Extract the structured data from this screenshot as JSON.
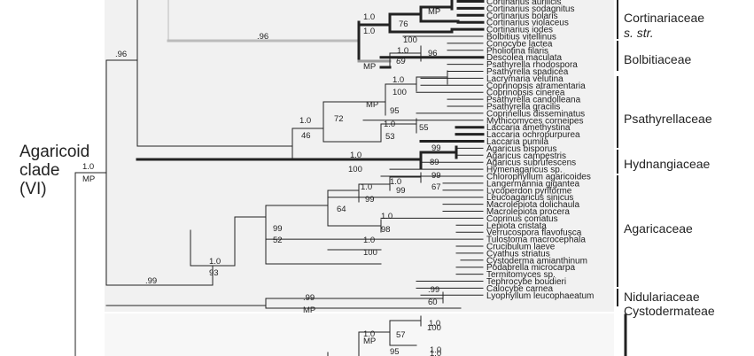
{
  "clade": {
    "line1": "Agaricoid",
    "line2": "clade",
    "line3": "(VI)",
    "support_top": "1.0",
    "support_bottom": "MP"
  },
  "taxa": [
    "Cortinarius aurilicis",
    "Cortinarius sodagnitus",
    "Cortinarius bolaris",
    "Cortinarius violaceus",
    "Cortinarius iodes",
    "Bolbitius vitellinus",
    "Conocybe lactea",
    "Pholiotina filaris",
    "Descolea maculata",
    "Psathyrella rhodospora",
    "Psathyrella spadicea",
    "Lacrymaria velutina",
    "Coprinopsis atramentaria",
    "Coprinopsis cinerea",
    "Psathyrella candolleana",
    "Psathyrella gracilis",
    "Coprinellus disseminatus",
    "Mythicomyces corneipes",
    "Laccaria amethystina",
    "Laccaria ochropurpurea",
    "Laccaria pumila",
    "Agaricus bisporus",
    "Agaricus campestris",
    "Agaricus subrufescens",
    "Hymenagaricus sp.",
    "Chlorophyllum agaricoides",
    "Langermannia gigantea",
    "Lycoperdon pyriforme",
    "Leucoagaricus sinicus",
    "Macrolepiota dolichaula",
    "Macrolepiota procera",
    "Coprinus comatus",
    "Lepiota cristata",
    "Verrucospora flavofusca",
    "Tulostoma macrocephala",
    "Crucibulum laeve",
    "Cyathus striatus",
    "Cystoderma amianthinum",
    "Podabrella microcarpa",
    "Termitomyces sp.",
    "Tephrocybe boudieri",
    "Calocybe carnea",
    "Lyophyllum leucophaeatum"
  ],
  "families": {
    "cortinariaceae": "Cortinariaceae",
    "s_str": "s. str.",
    "bolbitiaceae": "Bolbitiaceae",
    "psathyrellaceae": "Psathyrellaceae",
    "hydnangiaceae": "Hydnangiaceae",
    "agaricaceae": "Agaricaceae",
    "nidulariaceae": "Nidulariaceae",
    "cystodermateae": "Cystodermateae"
  },
  "supports": [
    ".96",
    ".96",
    "MP",
    "1.0",
    "76",
    "1.0",
    "100",
    "1.0",
    "96",
    "69",
    "MP",
    "1.0",
    "72",
    "46",
    "MP",
    "1.0",
    "100",
    "95",
    "1.0",
    "55",
    "53",
    "99",
    "89",
    "1.0",
    "100",
    "99",
    "67",
    "1.0",
    "99",
    "1.0",
    "99",
    "64",
    "1.0",
    "98",
    "1.0",
    "100",
    "99",
    "52",
    "1.0",
    "93",
    ".99",
    ".99",
    "60",
    ".99",
    "MP",
    "1.0",
    "100",
    "1.0",
    "57",
    "MP",
    "95",
    "1.0",
    "1.0"
  ]
}
